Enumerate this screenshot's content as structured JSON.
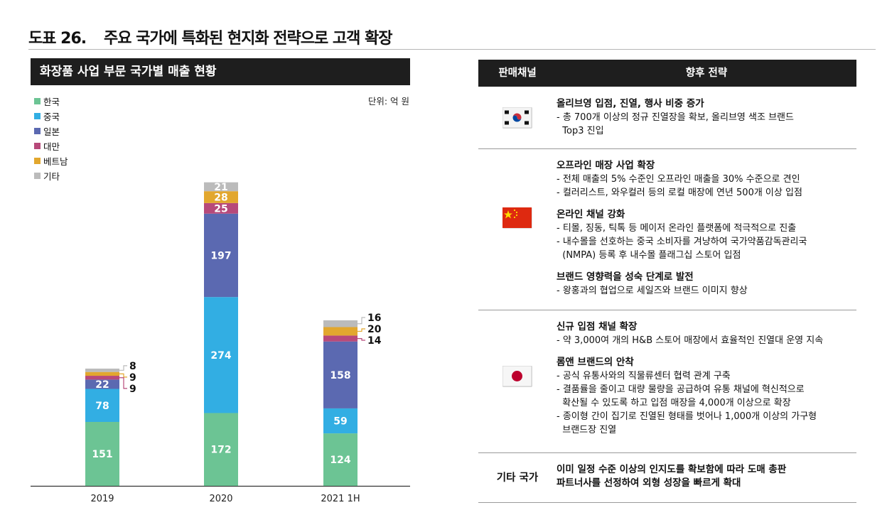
{
  "figure": {
    "number": "도표 26.",
    "title": "주요 국가에 특화된 현지화 전략으로 고객 확장"
  },
  "chart_panel": {
    "header": "화장품 사업 부문 국가별 매출 현황",
    "unit": "단위: 억 원"
  },
  "chart_data": {
    "type": "bar",
    "stacked": true,
    "title": "화장품 사업 부문 국가별 매출 현황",
    "unit": "단위: 억 원",
    "categories": [
      "2019",
      "2020",
      "2021 1H"
    ],
    "series": [
      {
        "name": "한국",
        "color": "#6cc494",
        "values": [
          151,
          172,
          124
        ]
      },
      {
        "name": "중국",
        "color": "#32aee3",
        "values": [
          78,
          274,
          59
        ]
      },
      {
        "name": "일본",
        "color": "#5b69b1",
        "values": [
          22,
          197,
          158
        ]
      },
      {
        "name": "대만",
        "color": "#b7497a",
        "values": [
          9,
          25,
          14
        ]
      },
      {
        "name": "베트남",
        "color": "#e2a72e",
        "values": [
          9,
          28,
          20
        ]
      },
      {
        "name": "기타",
        "color": "#bbbbbb",
        "values": [
          8,
          21,
          16
        ]
      }
    ],
    "legend_position": "top-left",
    "grid": false
  },
  "table": {
    "header_channel": "판매채널",
    "header_strategy": "향후 전략",
    "rows": [
      {
        "flag": "korea-flag",
        "blocks": [
          {
            "title": "올리브영 입점, 진열, 행사 비중 증가",
            "lines": [
              "- 총 700개 이상의 정규 진열장을 확보, 올리브영 색조 브랜드",
              "  Top3 진입"
            ]
          }
        ]
      },
      {
        "flag": "china-flag",
        "blocks": [
          {
            "title": "오프라인 매장 사업 확장",
            "lines": [
              "- 전체 매출의 5% 수준인 오프라인 매출을 30% 수준으로 견인",
              "- 컬러리스트, 와우컬러 등의 로컬 매장에 연년 500개 이상 입점"
            ]
          },
          {
            "title": "온라인 채널 강화",
            "lines": [
              "- 티몰, 징동, 틱톡 등 메이저 온라인 플랫폼에 적극적으로 진출",
              "- 내수몰을 선호하는 중국 소비자를 겨냥하여 국가약품감독관리국",
              "  (NMPA) 등록 후 내수몰 플래그십 스토어 입점"
            ]
          },
          {
            "title": "브랜드 영향력을 성숙 단계로 발전",
            "lines": [
              "- 왕홍과의 협업으로 세일즈와 브랜드 이미지 향상"
            ]
          }
        ]
      },
      {
        "flag": "japan-flag",
        "blocks": [
          {
            "title": "신규 입점 채널 확장",
            "lines": [
              "- 약 3,000여 개의 H&B 스토어 매장에서 효율적인 진열대 운영 지속"
            ]
          },
          {
            "title": "롬앤 브랜드의 안착",
            "lines": [
              "- 공식 유통사와의 직물류센터 협력 관계 구축",
              "- 결품률을 줄이고 대량 물량을 공급하여 유통 채널에 혁신적으로",
              "  확산될 수 있도록 하고 입점 매장을 4,000개 이상으로 확장",
              "- 종이형 간이 집기로 진열된 형태를 벗어나 1,000개 이상의 가구형",
              "  브랜드장 진열"
            ]
          }
        ]
      },
      {
        "channel_text": "기타 국가",
        "blocks": [
          {
            "title": "이미 일정 수준 이상의 인지도를 확보함에 따라 도매 총판",
            "lines": [
              "파트너사를 선정하여 외형 성장을 빠르게 확대"
            ],
            "bold_lines": true
          }
        ]
      }
    ]
  }
}
